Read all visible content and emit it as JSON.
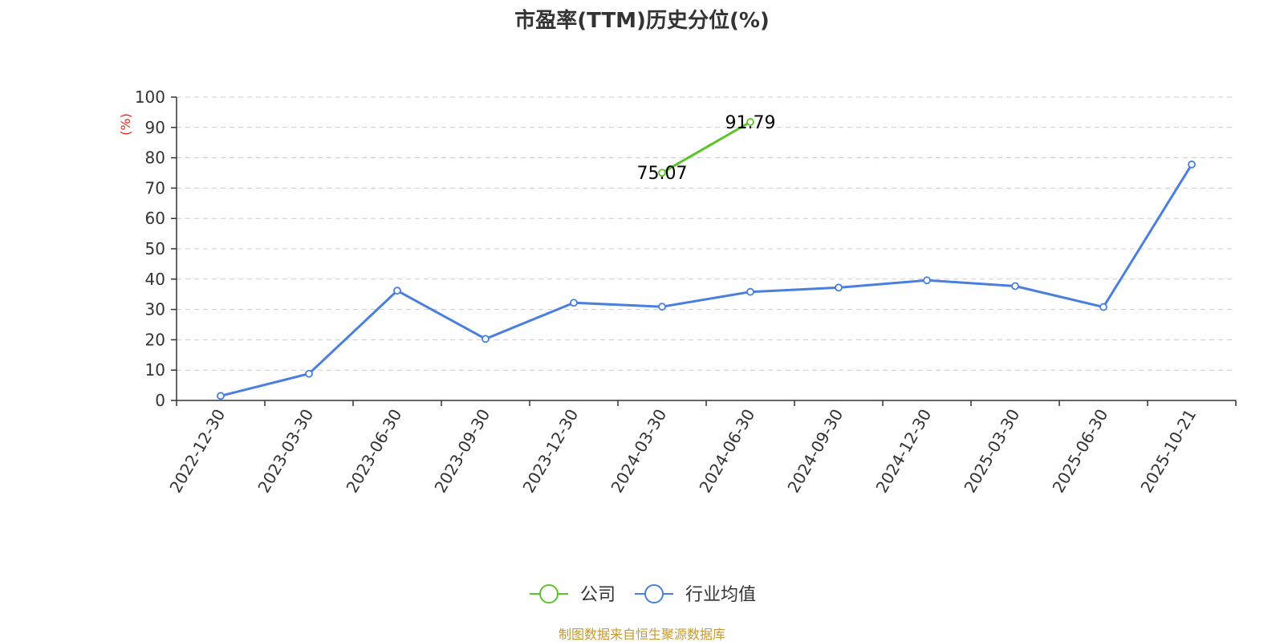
{
  "chart_data": {
    "type": "line",
    "title": "市盈率(TTM)历史分位(%)",
    "ylabel": "(%)",
    "ylim": [
      0,
      100
    ],
    "yticks": [
      0,
      10,
      20,
      30,
      40,
      50,
      60,
      70,
      80,
      90,
      100
    ],
    "grid": true,
    "legend_position": "bottom",
    "categories": [
      "2022-12-30",
      "2023-03-30",
      "2023-06-30",
      "2023-09-30",
      "2023-12-30",
      "2024-03-30",
      "2024-06-30",
      "2024-09-30",
      "2024-12-30",
      "2025-03-30",
      "2025-06-30",
      "2025-10-21"
    ],
    "series": [
      {
        "name": "公司",
        "color": "#5bc429",
        "values": [
          null,
          null,
          null,
          null,
          null,
          75.07,
          91.79,
          null,
          null,
          null,
          null,
          null
        ],
        "labels": [
          null,
          null,
          null,
          null,
          null,
          "75.07",
          "91.79",
          null,
          null,
          null,
          null,
          null
        ]
      },
      {
        "name": "行业均值",
        "color": "#4a7fe0",
        "values": [
          1.5,
          8.8,
          36.2,
          20.3,
          32.2,
          30.9,
          35.8,
          37.2,
          39.6,
          37.7,
          30.8,
          77.8
        ]
      }
    ],
    "source": "制图数据来自恒生聚源数据库",
    "source_color": "#c8992f",
    "ylabel_color": "#e8261a"
  }
}
